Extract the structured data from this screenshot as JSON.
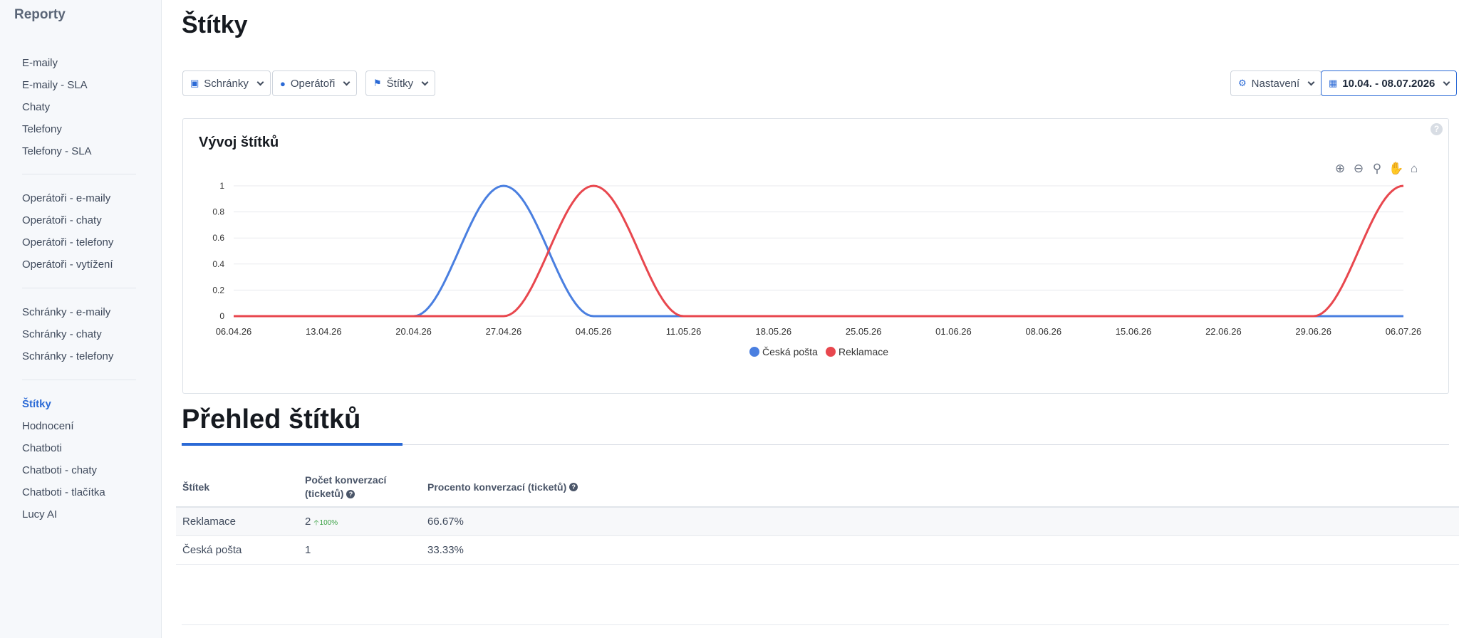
{
  "sidebar": {
    "title": "Reporty",
    "groups": [
      [
        "E-maily",
        "E-maily - SLA",
        "Chaty",
        "Telefony",
        "Telefony - SLA"
      ],
      [
        "Operátoři - e-maily",
        "Operátoři - chaty",
        "Operátoři - telefony",
        "Operátoři - vytížení"
      ],
      [
        "Schránky - e-maily",
        "Schránky - chaty",
        "Schránky - telefony"
      ],
      [
        "Štítky",
        "Hodnocení",
        "Chatboti",
        "Chatboti - chaty",
        "Chatboti - tlačítka",
        "Lucy AI"
      ]
    ],
    "active": "Štítky"
  },
  "page": {
    "title": "Štítky"
  },
  "filters": {
    "mailboxes": "Schránky",
    "operators": "Operátoři",
    "tags": "Štítky",
    "settings": "Nastavení",
    "date_range": "10.04. - 08.07.2026"
  },
  "chart_card": {
    "title": "Vývoj štítků",
    "help": "?"
  },
  "chart_data": {
    "type": "line",
    "x": [
      "06.04.26",
      "13.04.26",
      "20.04.26",
      "27.04.26",
      "04.05.26",
      "11.05.26",
      "18.05.26",
      "25.05.26",
      "01.06.26",
      "08.06.26",
      "15.06.26",
      "22.06.26",
      "29.06.26",
      "06.07.26"
    ],
    "y_ticks": [
      "0",
      "0.2",
      "0.4",
      "0.6",
      "0.8",
      "1"
    ],
    "ylim": [
      0,
      1
    ],
    "series": [
      {
        "name": "Česká pošta",
        "color": "#4a7fe0",
        "values": [
          0,
          0,
          0,
          1,
          0,
          0,
          0,
          0,
          0,
          0,
          0,
          0,
          0,
          0
        ]
      },
      {
        "name": "Reklamace",
        "color": "#e8474e",
        "values": [
          0,
          0,
          0,
          0,
          1,
          0,
          0,
          0,
          0,
          0,
          0,
          0,
          0,
          1
        ]
      }
    ],
    "legend": "bottom-center",
    "grid": true
  },
  "overview": {
    "title": "Přehled štítků",
    "columns": [
      "Štítek",
      "Počet konverzací (ticketů)",
      "Procento konverzací (ticketů)"
    ],
    "rows": [
      {
        "tag": "Reklamace",
        "count": "2",
        "trend": "100%",
        "percent": "66.67%"
      },
      {
        "tag": "Česká pošta",
        "count": "1",
        "trend": "",
        "percent": "33.33%"
      }
    ]
  }
}
